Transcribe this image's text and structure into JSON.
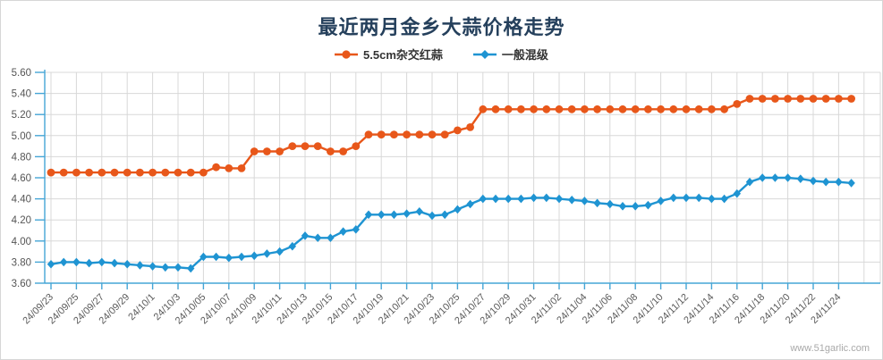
{
  "title": "最近两月金乡大蒜价格走势",
  "watermark": "www.51garlic.com",
  "chart_data": {
    "type": "line",
    "title": "最近两月金乡大蒜价格走势",
    "xlabel": "",
    "ylabel": "",
    "ylim": [
      3.6,
      5.6
    ],
    "ytick_step": 0.2,
    "grid": true,
    "legend_position": "top-center",
    "y_tick_labels": [
      "5.60",
      "5.40",
      "5.20",
      "5.00",
      "4.80",
      "4.60",
      "4.40",
      "4.20",
      "4.00",
      "3.80",
      "3.60"
    ],
    "x_tick_labels": [
      "24/09/23",
      "24/09/25",
      "24/09/27",
      "24/09/29",
      "24/10/1",
      "24/10/3",
      "24/10/05",
      "24/10/07",
      "24/10/09",
      "24/10/11",
      "24/10/13",
      "24/10/15",
      "24/10/17",
      "24/10/19",
      "24/10/21",
      "24/10/23",
      "24/10/25",
      "24/10/27",
      "24/10/29",
      "24/10/31",
      "24/11/02",
      "24/11/04",
      "24/11/06",
      "24/11/08",
      "24/11/10",
      "24/11/12",
      "24/11/14",
      "24/11/16",
      "24/11/18",
      "24/11/20",
      "24/11/22",
      "24/11/24"
    ],
    "x": [
      "24/09/23",
      "24/09/24",
      "24/09/25",
      "24/09/26",
      "24/09/27",
      "24/09/28",
      "24/09/29",
      "24/09/30",
      "24/10/01",
      "24/10/02",
      "24/10/03",
      "24/10/04",
      "24/10/05",
      "24/10/06",
      "24/10/07",
      "24/10/08",
      "24/10/09",
      "24/10/10",
      "24/10/11",
      "24/10/12",
      "24/10/13",
      "24/10/14",
      "24/10/15",
      "24/10/16",
      "24/10/17",
      "24/10/18",
      "24/10/19",
      "24/10/20",
      "24/10/21",
      "24/10/22",
      "24/10/23",
      "24/10/24",
      "24/10/25",
      "24/10/26",
      "24/10/27",
      "24/10/28",
      "24/10/29",
      "24/10/30",
      "24/10/31",
      "24/11/01",
      "24/11/02",
      "24/11/03",
      "24/11/04",
      "24/11/05",
      "24/11/06",
      "24/11/07",
      "24/11/08",
      "24/11/09",
      "24/11/10",
      "24/11/11",
      "24/11/12",
      "24/11/13",
      "24/11/14",
      "24/11/15",
      "24/11/16",
      "24/11/17",
      "24/11/18",
      "24/11/19",
      "24/11/20",
      "24/11/21",
      "24/11/22",
      "24/11/23",
      "24/11/24",
      "24/11/25"
    ],
    "series": [
      {
        "name": "5.5cm杂交红蒜",
        "color": "#e8571a",
        "marker": "circle",
        "values": [
          4.65,
          4.65,
          4.65,
          4.65,
          4.65,
          4.65,
          4.65,
          4.65,
          4.65,
          4.65,
          4.65,
          4.65,
          4.65,
          4.7,
          4.69,
          4.69,
          4.85,
          4.85,
          4.85,
          4.9,
          4.9,
          4.9,
          4.85,
          4.85,
          4.9,
          5.01,
          5.01,
          5.01,
          5.01,
          5.01,
          5.01,
          5.01,
          5.05,
          5.08,
          5.25,
          5.25,
          5.25,
          5.25,
          5.25,
          5.25,
          5.25,
          5.25,
          5.25,
          5.25,
          5.25,
          5.25,
          5.25,
          5.25,
          5.25,
          5.25,
          5.25,
          5.25,
          5.25,
          5.25,
          5.3,
          5.35,
          5.35,
          5.35,
          5.35,
          5.35,
          5.35,
          5.35,
          5.35,
          5.35
        ]
      },
      {
        "name": "一般混级",
        "color": "#1f94d2",
        "marker": "diamond",
        "values": [
          3.78,
          3.8,
          3.8,
          3.79,
          3.8,
          3.79,
          3.78,
          3.77,
          3.76,
          3.75,
          3.75,
          3.74,
          3.85,
          3.85,
          3.84,
          3.85,
          3.86,
          3.88,
          3.9,
          3.95,
          4.05,
          4.03,
          4.03,
          4.09,
          4.11,
          4.25,
          4.25,
          4.25,
          4.26,
          4.28,
          4.24,
          4.25,
          4.3,
          4.35,
          4.4,
          4.4,
          4.4,
          4.4,
          4.41,
          4.41,
          4.4,
          4.39,
          4.38,
          4.36,
          4.35,
          4.33,
          4.33,
          4.34,
          4.38,
          4.41,
          4.41,
          4.41,
          4.4,
          4.4,
          4.45,
          4.56,
          4.6,
          4.6,
          4.6,
          4.59,
          4.57,
          4.56,
          4.56,
          4.55
        ]
      }
    ],
    "colors": {
      "axis_line": "#45a5d6",
      "grid_line": "#d8d8d8",
      "y_label": "#555555",
      "x_label": "#5a5a5a",
      "title": "#25405c"
    }
  }
}
